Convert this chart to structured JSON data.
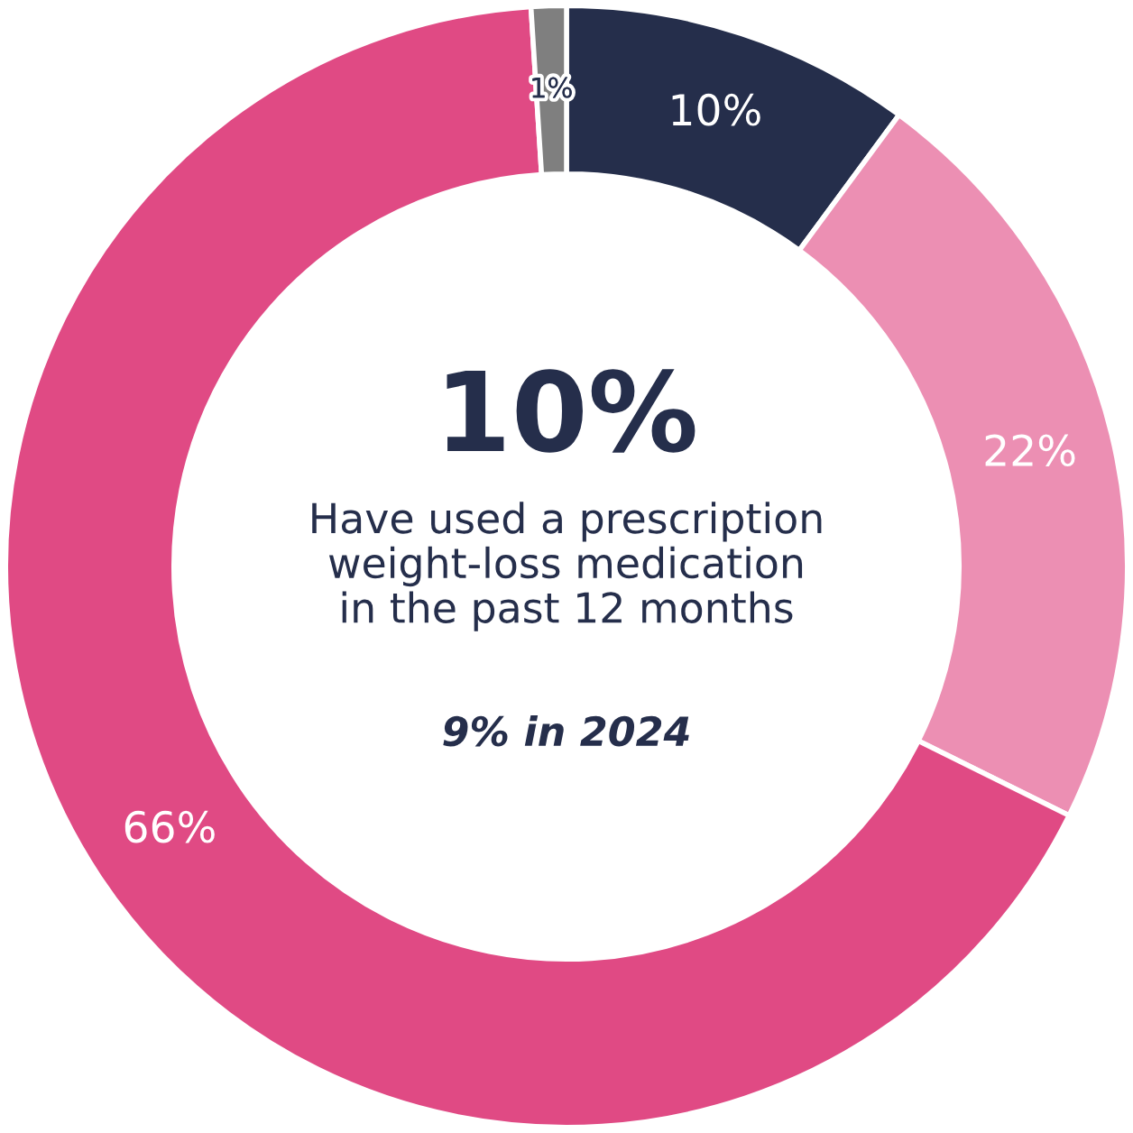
{
  "chart_data": {
    "type": "donut",
    "categories": [
      null,
      null,
      null,
      null
    ],
    "values": [
      10,
      22,
      66,
      1
    ],
    "colors": [
      "#252e4b",
      "#ec8fb3",
      "#e04a84",
      "#7f7f7f"
    ],
    "value_labels": [
      "10%",
      "22%",
      "66%",
      "1%"
    ],
    "annotations": [
      "10%",
      "Have used a prescription\nweight-loss medication\nin the past 12 months",
      "9% in 2024"
    ]
  }
}
